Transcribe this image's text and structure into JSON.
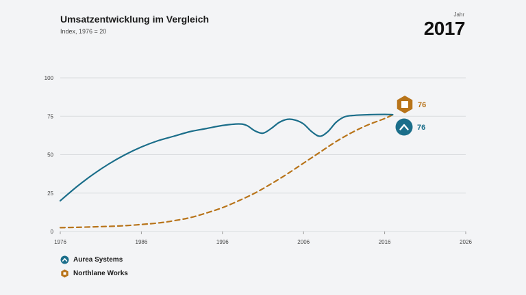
{
  "header": {
    "title": "Umsatzentwicklung im Vergleich",
    "subtitle": "Index, 1976 = 20",
    "year_label": "Jahr",
    "year_value": "2017"
  },
  "colors": {
    "series_a": "#1b6e8a",
    "series_b": "#b8741a",
    "gridline": "#d9dbde",
    "tick_text": "#444444",
    "background": "#f3f4f6"
  },
  "legend": [
    {
      "name": "Aurea Systems",
      "icon": "chevron-up-circle-icon"
    },
    {
      "name": "Northlane Works",
      "icon": "hexagon-square-icon"
    }
  ],
  "chart_data": {
    "type": "line",
    "title": "Umsatzentwicklung im Vergleich",
    "subtitle": "Index, 1976 = 20",
    "xlabel": "",
    "ylabel": "",
    "xlim": [
      1976,
      2026
    ],
    "ylim": [
      0,
      100
    ],
    "xticks": [
      1976,
      1986,
      1996,
      2006,
      2016,
      2026
    ],
    "yticks": [
      0,
      25,
      50,
      75,
      100
    ],
    "grid": true,
    "legend_position": "bottom-left",
    "series": [
      {
        "name": "Aurea Systems",
        "style": "solid",
        "end_label": "76",
        "x": [
          1976,
          1978,
          1980,
          1982,
          1984,
          1986,
          1988,
          1990,
          1992,
          1994,
          1996,
          1998,
          1999,
          2000,
          2001,
          2002,
          2003,
          2004,
          2005,
          2006,
          2007,
          2008,
          2009,
          2010,
          2011,
          2012,
          2014,
          2016,
          2017
        ],
        "values": [
          20,
          29,
          37,
          44,
          50,
          55,
          59,
          62,
          65,
          67,
          69,
          70,
          69,
          65.5,
          64,
          67,
          71,
          73,
          72.5,
          70,
          65,
          62,
          65,
          71,
          74.5,
          75.5,
          76,
          76.2,
          76
        ]
      },
      {
        "name": "Northlane Works",
        "style": "dashed",
        "end_label": "76",
        "x": [
          1976,
          1980,
          1984,
          1988,
          1990,
          1992,
          1994,
          1996,
          1998,
          2000,
          2002,
          2004,
          2006,
          2008,
          2010,
          2012,
          2014,
          2016,
          2017
        ],
        "values": [
          2.5,
          3,
          3.8,
          5.5,
          7,
          9,
          12,
          15.5,
          20,
          25,
          31,
          37.5,
          44.5,
          51.5,
          58.5,
          64.5,
          69.5,
          73.5,
          76
        ]
      }
    ]
  }
}
